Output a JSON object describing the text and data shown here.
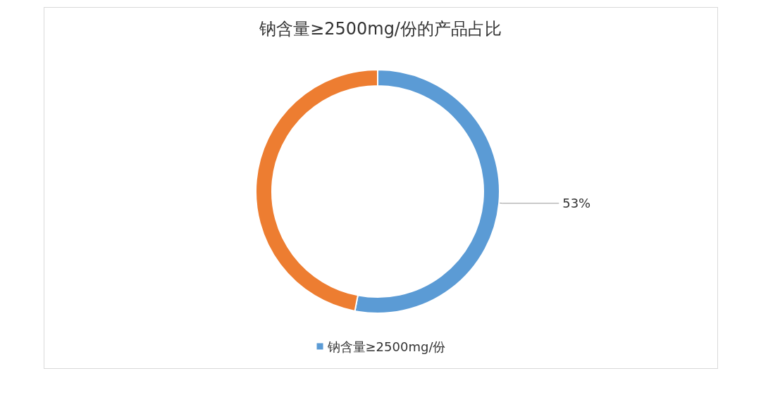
{
  "chart_data": {
    "type": "donut",
    "title": "钠含量≥2500mg/份的产品占比",
    "categories": [
      "钠含量≥2500mg/份",
      null
    ],
    "values": [
      53,
      47
    ],
    "colors": [
      "#5b9bd5",
      "#ed7d31"
    ],
    "value_labels": [
      "53%",
      null
    ],
    "legend": "bottom"
  }
}
